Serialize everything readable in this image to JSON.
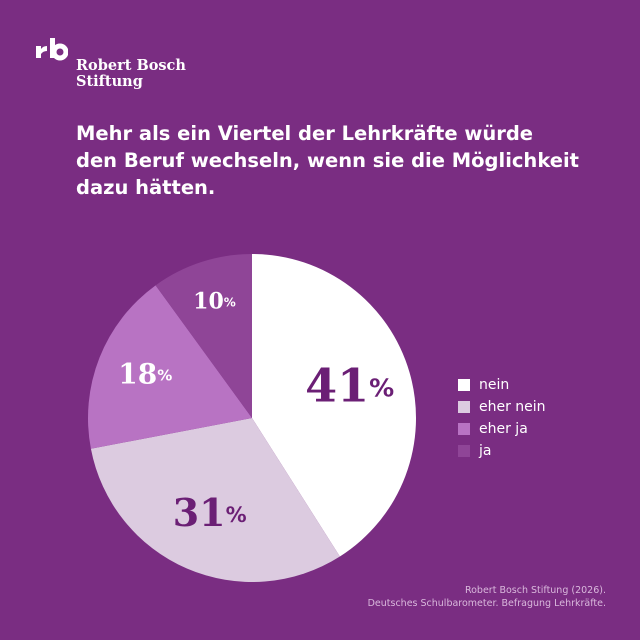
{
  "brand": {
    "line1": "Robert Bosch",
    "line2": "Stiftung"
  },
  "headline": {
    "line1": "Mehr als ein Viertel der Lehrkräfte würde",
    "line2": "den Beruf wechseln, wenn sie die Möglichkeit",
    "line3": "dazu hätten."
  },
  "colors": {
    "background": "#7a2d82",
    "nein": "#ffffff",
    "eher_nein": "#dccbe0",
    "eher_ja": "#b873c3",
    "ja": "#8f4597",
    "label_dark": "#6b1f75",
    "label_light": "#ffffff"
  },
  "chart_data": {
    "type": "pie",
    "unit": "%",
    "slices": [
      {
        "label": "nein",
        "value": 41
      },
      {
        "label": "eher nein",
        "value": 31
      },
      {
        "label": "eher ja",
        "value": 18
      },
      {
        "label": "ja",
        "value": 10
      }
    ],
    "legend_position": "right"
  },
  "source": {
    "line1": "Robert Bosch Stiftung (2026).",
    "line2": "Deutsches Schulbarometer. Befragung Lehrkräfte."
  }
}
